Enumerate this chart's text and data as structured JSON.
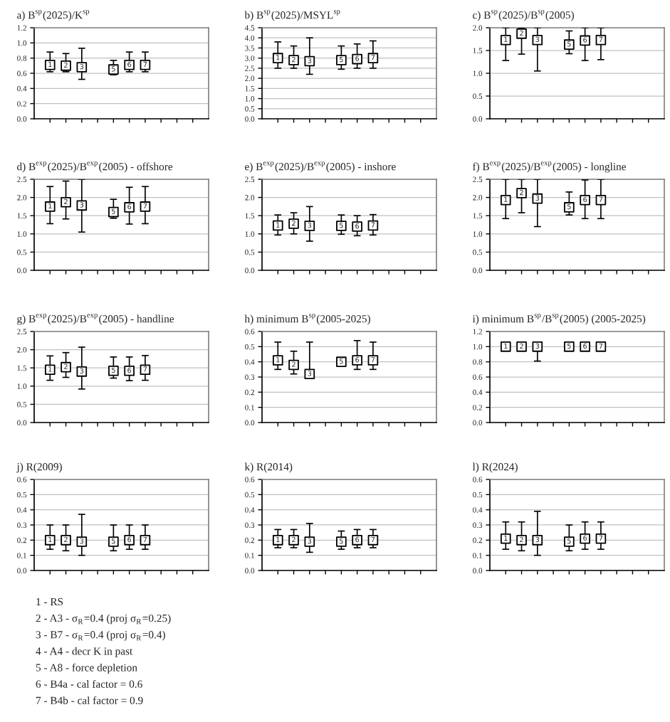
{
  "chart_data": [
    {
      "type": "scatter",
      "title": "a) B$^{sp}$(2025)/K$^{sp}$",
      "categories": [
        null,
        null,
        null,
        null,
        null,
        null,
        null,
        null,
        null,
        null
      ],
      "values": [
        0.71,
        0.7,
        0.68,
        null,
        0.65,
        0.71,
        0.71,
        null,
        null,
        null
      ],
      "errors": [
        [
          0.62,
          0.88
        ],
        [
          0.62,
          0.86
        ],
        [
          0.52,
          0.93
        ],
        null,
        [
          0.58,
          0.77
        ],
        [
          0.62,
          0.88
        ],
        [
          0.62,
          0.88
        ],
        null,
        null,
        null
      ],
      "color": "#000000",
      "marker": "square",
      "ylim": [
        0,
        1.2
      ],
      "yticks": [
        {
          "value": 0,
          "label": "0.0"
        },
        {
          "value": 0.2,
          "label": "0.2"
        },
        {
          "value": 0.4,
          "label": "0.4"
        },
        {
          "value": 0.6,
          "label": "0.6"
        },
        {
          "value": 0.8,
          "label": "0.8"
        },
        {
          "value": 1.0,
          "label": "1.0"
        },
        {
          "value": 1.2,
          "label": "1.2"
        }
      ],
      "grid": "y",
      "annotations": [
        {
          "text": "1",
          "y": 0.71
        },
        {
          "text": "2",
          "y": 0.7
        },
        {
          "text": "3",
          "y": 0.68
        },
        {
          "text": "5",
          "y": 0.65
        },
        {
          "text": "6",
          "y": 0.71
        },
        {
          "text": "7",
          "y": 0.71
        }
      ]
    },
    {
      "type": "scatter",
      "title": "b) B$^{sp}$(2025)/MSYL$^{sp}$",
      "categories": [
        null,
        null,
        null,
        null,
        null,
        null,
        null,
        null,
        null,
        null
      ],
      "values": [
        3.0,
        2.9,
        2.85,
        null,
        2.9,
        2.95,
        3.0,
        null,
        null,
        null
      ],
      "errors": [
        [
          2.5,
          3.8
        ],
        [
          2.5,
          3.6
        ],
        [
          2.2,
          4.0
        ],
        null,
        [
          2.45,
          3.6
        ],
        [
          2.5,
          3.7
        ],
        [
          2.5,
          3.85
        ],
        null,
        null,
        null
      ],
      "color": "#000000",
      "marker": "square",
      "ylim": [
        0,
        4.5
      ],
      "yticks": [
        {
          "value": 0,
          "label": "0.0"
        },
        {
          "value": 0.5,
          "label": "0.5"
        },
        {
          "value": 1.0,
          "label": "1.0"
        },
        {
          "value": 1.5,
          "label": "1.5"
        },
        {
          "value": 2.0,
          "label": "2.0"
        },
        {
          "value": 2.5,
          "label": "2.5"
        },
        {
          "value": 3.0,
          "label": "3.0"
        },
        {
          "value": 3.5,
          "label": "3.5"
        },
        {
          "value": 4.0,
          "label": "4.0"
        },
        {
          "value": 4.5,
          "label": "4.5"
        }
      ],
      "grid": "y",
      "annotations": [
        {
          "text": "1",
          "y": 3.0
        },
        {
          "text": "2",
          "y": 2.9
        },
        {
          "text": "3",
          "y": 2.85
        },
        {
          "text": "5",
          "y": 2.9
        },
        {
          "text": "6",
          "y": 2.95
        },
        {
          "text": "7",
          "y": 3.0
        }
      ]
    },
    {
      "type": "scatter",
      "title": "c) B$^{sp}$(2025)/B$^{sp}$(2005)",
      "categories": [
        null,
        null,
        null,
        null,
        null,
        null,
        null,
        null,
        null,
        null
      ],
      "values": [
        1.73,
        1.87,
        1.73,
        null,
        1.63,
        1.72,
        1.73,
        null,
        null,
        null
      ],
      "errors": [
        [
          1.28,
          2.0
        ],
        [
          1.42,
          2.0
        ],
        [
          1.05,
          2.0
        ],
        null,
        [
          1.43,
          1.93
        ],
        [
          1.28,
          2.0
        ],
        [
          1.3,
          2.0
        ],
        null,
        null,
        null
      ],
      "color": "#000000",
      "marker": "square",
      "ylim": [
        0,
        2.0
      ],
      "yticks": [
        {
          "value": 0,
          "label": "0.0"
        },
        {
          "value": 0.5,
          "label": "0.5"
        },
        {
          "value": 1.0,
          "label": "1.0"
        },
        {
          "value": 1.5,
          "label": "1.5"
        },
        {
          "value": 2.0,
          "label": "2.0"
        }
      ],
      "grid": "y",
      "annotations": [
        {
          "text": "1",
          "y": 1.73
        },
        {
          "text": "2",
          "y": 1.87
        },
        {
          "text": "3",
          "y": 1.73
        },
        {
          "text": "5",
          "y": 1.63
        },
        {
          "text": "6",
          "y": 1.72
        },
        {
          "text": "7",
          "y": 1.73
        }
      ]
    },
    {
      "type": "scatter",
      "title": "d) B$^{exp}$(2025)/B$^{exp}$(2005) - offshore",
      "categories": [
        null,
        null,
        null,
        null,
        null,
        null,
        null,
        null,
        null,
        null
      ],
      "values": [
        1.75,
        1.87,
        1.78,
        null,
        1.6,
        1.73,
        1.75,
        null,
        null,
        null
      ],
      "errors": [
        [
          1.28,
          2.3
        ],
        [
          1.41,
          2.45
        ],
        [
          1.05,
          2.5
        ],
        null,
        [
          1.43,
          1.95
        ],
        [
          1.27,
          2.28
        ],
        [
          1.28,
          2.3
        ],
        null,
        null,
        null
      ],
      "color": "#000000",
      "marker": "square",
      "ylim": [
        0,
        2.5
      ],
      "yticks": [
        {
          "value": 0,
          "label": "0.0"
        },
        {
          "value": 0.5,
          "label": "0.5"
        },
        {
          "value": 1.0,
          "label": "1.0"
        },
        {
          "value": 1.5,
          "label": "1.5"
        },
        {
          "value": 2.0,
          "label": "2.0"
        },
        {
          "value": 2.5,
          "label": "2.5"
        }
      ],
      "grid": "y",
      "annotations": [
        {
          "text": "1",
          "y": 1.75
        },
        {
          "text": "2",
          "y": 1.87
        },
        {
          "text": "3",
          "y": 1.78
        },
        {
          "text": "5",
          "y": 1.6
        },
        {
          "text": "6",
          "y": 1.73
        },
        {
          "text": "7",
          "y": 1.75
        }
      ]
    },
    {
      "type": "scatter",
      "title": "e) B$^{exp}$(2025)/B$^{exp}$(2005) - inshore",
      "categories": [
        null,
        null,
        null,
        null,
        null,
        null,
        null,
        null,
        null,
        null
      ],
      "values": [
        1.23,
        1.28,
        1.22,
        null,
        1.22,
        1.2,
        1.23,
        null,
        null,
        null
      ],
      "errors": [
        [
          0.97,
          1.52
        ],
        [
          1.0,
          1.58
        ],
        [
          0.8,
          1.75
        ],
        null,
        [
          0.99,
          1.52
        ],
        [
          0.95,
          1.5
        ],
        [
          0.97,
          1.53
        ],
        null,
        null,
        null
      ],
      "color": "#000000",
      "marker": "square",
      "ylim": [
        0,
        2.5
      ],
      "yticks": [
        {
          "value": 0,
          "label": "0.0"
        },
        {
          "value": 0.5,
          "label": "0.5"
        },
        {
          "value": 1.0,
          "label": "1.0"
        },
        {
          "value": 1.5,
          "label": "1.5"
        },
        {
          "value": 2.0,
          "label": "2.0"
        },
        {
          "value": 2.5,
          "label": "2.5"
        }
      ],
      "grid": "y",
      "annotations": [
        {
          "text": "1",
          "y": 1.23
        },
        {
          "text": "2",
          "y": 1.28
        },
        {
          "text": "3",
          "y": 1.22
        },
        {
          "text": "5",
          "y": 1.22
        },
        {
          "text": "6",
          "y": 1.2
        },
        {
          "text": "7",
          "y": 1.23
        }
      ]
    },
    {
      "type": "scatter",
      "title": "f) B$^{exp}$(2025)/B$^{exp}$(2005) - longline",
      "categories": [
        null,
        null,
        null,
        null,
        null,
        null,
        null,
        null,
        null,
        null
      ],
      "values": [
        1.93,
        2.12,
        1.97,
        null,
        1.73,
        1.93,
        1.93,
        null,
        null,
        null
      ],
      "errors": [
        [
          1.42,
          2.5
        ],
        [
          1.58,
          2.5
        ],
        [
          1.2,
          2.5
        ],
        null,
        [
          1.52,
          2.15
        ],
        [
          1.42,
          2.48
        ],
        [
          1.42,
          2.5
        ],
        null,
        null,
        null
      ],
      "color": "#000000",
      "marker": "square",
      "ylim": [
        0,
        2.5
      ],
      "yticks": [
        {
          "value": 0,
          "label": "0.0"
        },
        {
          "value": 0.5,
          "label": "0.5"
        },
        {
          "value": 1.0,
          "label": "1.0"
        },
        {
          "value": 1.5,
          "label": "1.5"
        },
        {
          "value": 2.0,
          "label": "2.0"
        },
        {
          "value": 2.5,
          "label": "2.5"
        }
      ],
      "grid": "y",
      "annotations": [
        {
          "text": "1",
          "y": 1.93
        },
        {
          "text": "2",
          "y": 2.12
        },
        {
          "text": "3",
          "y": 1.97
        },
        {
          "text": "5",
          "y": 1.73
        },
        {
          "text": "6",
          "y": 1.93
        },
        {
          "text": "7",
          "y": 1.93
        }
      ]
    },
    {
      "type": "scatter",
      "title": "g) B$^{exp}$(2025)/B$^{exp}$(2005) - handline",
      "categories": [
        null,
        null,
        null,
        null,
        null,
        null,
        null,
        null,
        null,
        null
      ],
      "values": [
        1.45,
        1.52,
        1.4,
        null,
        1.42,
        1.42,
        1.45,
        null,
        null,
        null
      ],
      "errors": [
        [
          1.16,
          1.83
        ],
        [
          1.24,
          1.92
        ],
        [
          0.92,
          2.07
        ],
        null,
        [
          1.22,
          1.8
        ],
        [
          1.15,
          1.8
        ],
        [
          1.16,
          1.84
        ],
        null,
        null,
        null
      ],
      "color": "#000000",
      "marker": "square",
      "ylim": [
        0,
        2.5
      ],
      "yticks": [
        {
          "value": 0,
          "label": "0.0"
        },
        {
          "value": 0.5,
          "label": "0.5"
        },
        {
          "value": 1.0,
          "label": "1.0"
        },
        {
          "value": 1.5,
          "label": "1.5"
        },
        {
          "value": 2.0,
          "label": "2.0"
        },
        {
          "value": 2.5,
          "label": "2.5"
        }
      ],
      "grid": "y",
      "annotations": [
        {
          "text": "1",
          "y": 1.45
        },
        {
          "text": "2",
          "y": 1.52
        },
        {
          "text": "3",
          "y": 1.4
        },
        {
          "text": "5",
          "y": 1.42
        },
        {
          "text": "6",
          "y": 1.42
        },
        {
          "text": "7",
          "y": 1.45
        }
      ]
    },
    {
      "type": "scatter",
      "title": "h) minimum B$^{sp}$(2005-2025)",
      "categories": [
        null,
        null,
        null,
        null,
        null,
        null,
        null,
        null,
        null,
        null
      ],
      "values": [
        0.41,
        0.38,
        0.32,
        null,
        0.4,
        0.41,
        0.41,
        null,
        null,
        null
      ],
      "errors": [
        [
          0.35,
          0.53
        ],
        [
          0.32,
          0.47
        ],
        [
          0.32,
          0.53
        ],
        null,
        null,
        [
          0.35,
          0.54
        ],
        [
          0.35,
          0.53
        ],
        null,
        null,
        null
      ],
      "color": "#000000",
      "marker": "square",
      "ylim": [
        0,
        0.6
      ],
      "yticks": [
        {
          "value": 0,
          "label": "0.0"
        },
        {
          "value": 0.1,
          "label": "0.1"
        },
        {
          "value": 0.2,
          "label": "0.2"
        },
        {
          "value": 0.3,
          "label": "0.3"
        },
        {
          "value": 0.4,
          "label": "0.4"
        },
        {
          "value": 0.5,
          "label": "0.5"
        },
        {
          "value": 0.6,
          "label": "0.6"
        }
      ],
      "grid": "y",
      "annotations": [
        {
          "text": "1",
          "y": 0.41
        },
        {
          "text": "2",
          "y": 0.38
        },
        {
          "text": "3",
          "y": 0.32
        },
        {
          "text": "5",
          "y": 0.4
        },
        {
          "text": "6",
          "y": 0.41
        },
        {
          "text": "7",
          "y": 0.41
        }
      ]
    },
    {
      "type": "scatter",
      "title": "i) minimum B$^{sp}$/B$^{sp}$(2005) (2005-2025)",
      "categories": [
        null,
        null,
        null,
        null,
        null,
        null,
        null,
        null,
        null,
        null
      ],
      "values": [
        1.0,
        1.0,
        1.0,
        null,
        1.0,
        1.0,
        1.0,
        null,
        null,
        null
      ],
      "errors": [
        null,
        null,
        [
          0.81,
          1.0
        ],
        null,
        null,
        null,
        null,
        null,
        null,
        null
      ],
      "color": "#000000",
      "marker": "square",
      "ylim": [
        0,
        1.2
      ],
      "yticks": [
        {
          "value": 0,
          "label": "0.0"
        },
        {
          "value": 0.2,
          "label": "0.2"
        },
        {
          "value": 0.4,
          "label": "0.4"
        },
        {
          "value": 0.6,
          "label": "0.6"
        },
        {
          "value": 0.8,
          "label": "0.8"
        },
        {
          "value": 1.0,
          "label": "1.0"
        },
        {
          "value": 1.2,
          "label": "1.2"
        }
      ],
      "grid": "y",
      "annotations": [
        {
          "text": "1",
          "y": 1.0
        },
        {
          "text": "2",
          "y": 1.0
        },
        {
          "text": "3",
          "y": 1.0
        },
        {
          "text": "5",
          "y": 1.0
        },
        {
          "text": "6",
          "y": 1.0
        },
        {
          "text": "7",
          "y": 1.0
        }
      ]
    },
    {
      "type": "scatter",
      "title": "j) R(2009)",
      "categories": [
        null,
        null,
        null,
        null,
        null,
        null,
        null,
        null,
        null,
        null
      ],
      "values": [
        0.2,
        0.2,
        0.19,
        null,
        0.19,
        0.2,
        0.2,
        null,
        null,
        null
      ],
      "errors": [
        [
          0.14,
          0.3
        ],
        [
          0.13,
          0.3
        ],
        [
          0.1,
          0.37
        ],
        null,
        [
          0.13,
          0.3
        ],
        [
          0.14,
          0.3
        ],
        [
          0.14,
          0.3
        ],
        null,
        null,
        null
      ],
      "color": "#000000",
      "marker": "square",
      "ylim": [
        0,
        0.6
      ],
      "yticks": [
        {
          "value": 0,
          "label": "0.0"
        },
        {
          "value": 0.1,
          "label": "0.1"
        },
        {
          "value": 0.2,
          "label": "0.2"
        },
        {
          "value": 0.3,
          "label": "0.3"
        },
        {
          "value": 0.4,
          "label": "0.4"
        },
        {
          "value": 0.5,
          "label": "0.5"
        },
        {
          "value": 0.6,
          "label": "0.6"
        }
      ],
      "grid": "y",
      "annotations": [
        {
          "text": "1",
          "y": 0.2
        },
        {
          "text": "2",
          "y": 0.2
        },
        {
          "text": "3",
          "y": 0.19
        },
        {
          "text": "5",
          "y": 0.19
        },
        {
          "text": "6",
          "y": 0.2
        },
        {
          "text": "7",
          "y": 0.2
        }
      ]
    },
    {
      "type": "scatter",
      "title": "k) R(2014)",
      "categories": [
        null,
        null,
        null,
        null,
        null,
        null,
        null,
        null,
        null,
        null
      ],
      "values": [
        0.2,
        0.2,
        0.19,
        null,
        0.19,
        0.2,
        0.2,
        null,
        null,
        null
      ],
      "errors": [
        [
          0.15,
          0.27
        ],
        [
          0.15,
          0.27
        ],
        [
          0.12,
          0.31
        ],
        null,
        [
          0.14,
          0.26
        ],
        [
          0.15,
          0.27
        ],
        [
          0.15,
          0.27
        ],
        null,
        null,
        null
      ],
      "color": "#000000",
      "marker": "square",
      "ylim": [
        0,
        0.6
      ],
      "yticks": [
        {
          "value": 0,
          "label": "0.0"
        },
        {
          "value": 0.1,
          "label": "0.1"
        },
        {
          "value": 0.2,
          "label": "0.2"
        },
        {
          "value": 0.3,
          "label": "0.3"
        },
        {
          "value": 0.4,
          "label": "0.4"
        },
        {
          "value": 0.5,
          "label": "0.5"
        },
        {
          "value": 0.6,
          "label": "0.6"
        }
      ],
      "grid": "y",
      "annotations": [
        {
          "text": "1",
          "y": 0.2
        },
        {
          "text": "2",
          "y": 0.2
        },
        {
          "text": "3",
          "y": 0.19
        },
        {
          "text": "5",
          "y": 0.19
        },
        {
          "text": "6",
          "y": 0.2
        },
        {
          "text": "7",
          "y": 0.2
        }
      ]
    },
    {
      "type": "scatter",
      "title": "l) R(2024)",
      "categories": [
        null,
        null,
        null,
        null,
        null,
        null,
        null,
        null,
        null,
        null
      ],
      "values": [
        0.21,
        0.2,
        0.2,
        null,
        0.19,
        0.21,
        0.21,
        null,
        null,
        null
      ],
      "errors": [
        [
          0.14,
          0.32
        ],
        [
          0.13,
          0.32
        ],
        [
          0.1,
          0.39
        ],
        null,
        [
          0.13,
          0.3
        ],
        [
          0.14,
          0.32
        ],
        [
          0.14,
          0.32
        ],
        null,
        null,
        null
      ],
      "color": "#000000",
      "marker": "square",
      "ylim": [
        0,
        0.6
      ],
      "yticks": [
        {
          "value": 0,
          "label": "0.0"
        },
        {
          "value": 0.1,
          "label": "0.1"
        },
        {
          "value": 0.2,
          "label": "0.2"
        },
        {
          "value": 0.3,
          "label": "0.3"
        },
        {
          "value": 0.4,
          "label": "0.4"
        },
        {
          "value": 0.5,
          "label": "0.5"
        },
        {
          "value": 0.6,
          "label": "0.6"
        }
      ],
      "grid": "y",
      "annotations": [
        {
          "text": "1",
          "y": 0.21
        },
        {
          "text": "2",
          "y": 0.2
        },
        {
          "text": "3",
          "y": 0.2
        },
        {
          "text": "5",
          "y": 0.19
        },
        {
          "text": "6",
          "y": 0.21
        },
        {
          "text": "7",
          "y": 0.21
        }
      ]
    },
    {
      "type": "other",
      "annotations": [
        "1 - RS",
        "2 - A3 - σ$_{R}$=0.4 (proj σ$_{R}$=0.25)",
        "3 - B7 - σ$_{R}$=0.4 (proj σ$_{R}$=0.4)",
        "4 - A4 - decr K in past",
        "5 - A8 - force depletion",
        "6 - B4a - cal factor = 0.6",
        "7 - B4b - cal factor = 0.9"
      ]
    }
  ]
}
